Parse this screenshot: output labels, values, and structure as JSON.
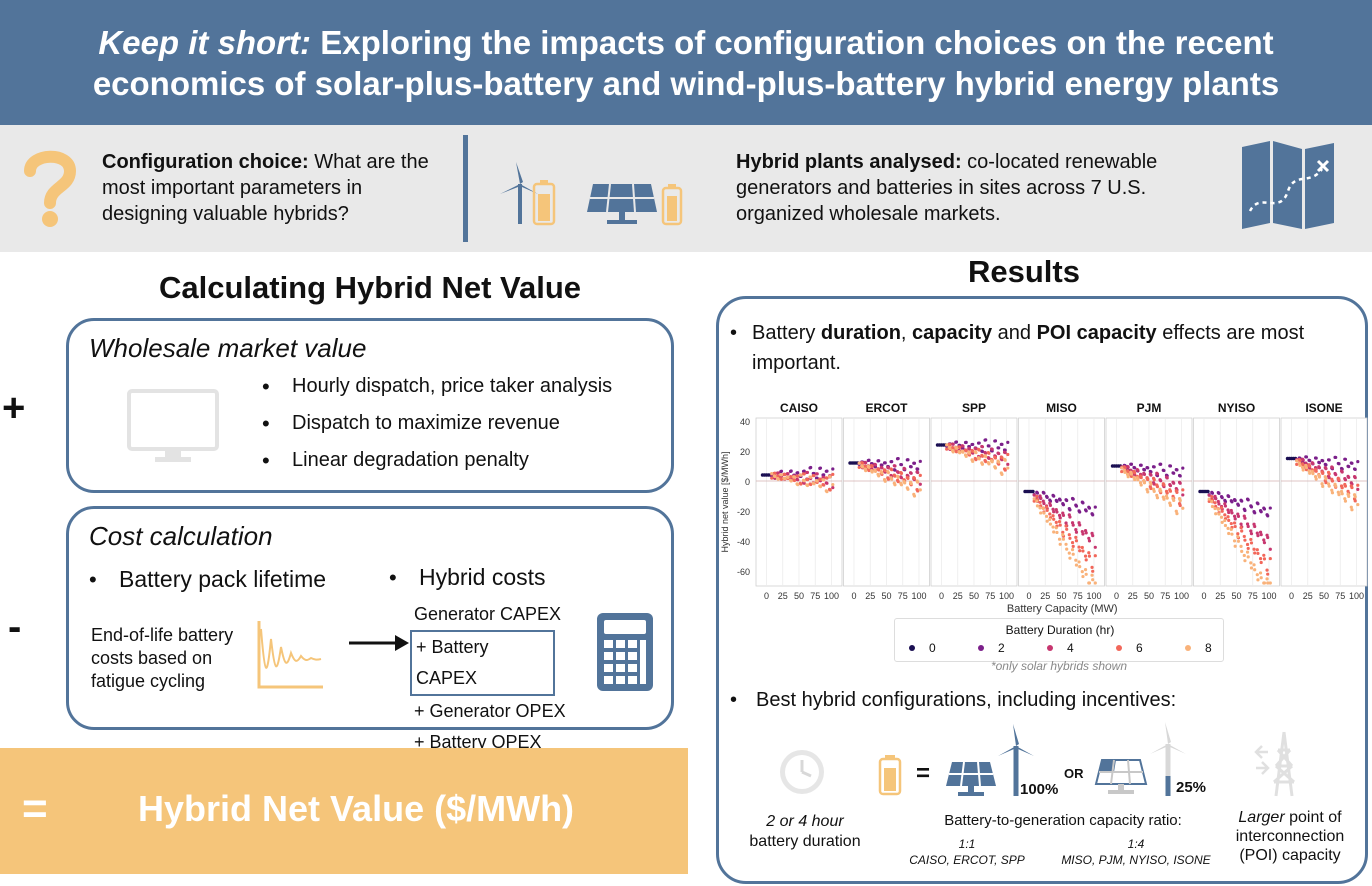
{
  "header": {
    "title_italic": "Keep it short:",
    "title_rest": " Exploring the impacts of configuration choices on the recent",
    "title_line2": "economics of solar-plus-battery and wind-plus-battery hybrid energy plants"
  },
  "intro": {
    "q_bold": "Configuration choice:",
    "q_rest": " What are the most important parameters in designing valuable hybrids?",
    "h_bold": "Hybrid plants analysed:",
    "h_rest": " co-located renewable generators and batteries in sites across 7 U.S. organized wholesale markets."
  },
  "left": {
    "title": "Calculating Hybrid Net Value",
    "plus": "+",
    "minus": "-",
    "equals": "=",
    "wholesale": {
      "title": "Wholesale market value",
      "bullets": [
        "Hourly dispatch, price taker analysis",
        "Dispatch to maximize revenue",
        "Linear degradation penalty"
      ]
    },
    "cost": {
      "title": "Cost calculation",
      "bullet_pack": "Battery pack lifetime",
      "bullet_hybrid": "Hybrid costs",
      "eol_text": "End-of-life battery costs based on fatigue cycling",
      "costs": [
        "Generator CAPEX",
        "+ Battery CAPEX",
        "+ Generator OPEX",
        "+ Battery OPEX"
      ]
    },
    "result": "Hybrid Net Value ($/MWh)"
  },
  "right": {
    "title": "Results",
    "bullet1_parts": [
      "Battery ",
      "duration",
      ", ",
      "capacity",
      " and ",
      "POI capacity",
      " effects are most important."
    ],
    "bullet2": "Best hybrid configurations, including incentives:",
    "duration_label_italic": "2 or 4 hour",
    "duration_label": "battery duration",
    "equals": "=",
    "or": "OR",
    "pct_100": "100%",
    "pct_25": "25%",
    "ratio_title": "Battery-to-generation capacity ratio:",
    "ratio_1": "1:1",
    "ratio_1_markets": "CAISO, ERCOT, SPP",
    "ratio_4": "1:4",
    "ratio_4_markets": "MISO, PJM, NYISO, ISONE",
    "poi_italic": "Larger",
    "poi_rest": " point of interconnection (POI) capacity"
  },
  "chart_data": {
    "type": "scatter",
    "panels": [
      "CAISO",
      "ERCOT",
      "SPP",
      "MISO",
      "PJM",
      "NYISO",
      "ISONE"
    ],
    "xlabel": "Battery Capacity (MW)",
    "ylabel": "Hybrid net value [$/MWh]",
    "xticks": [
      "0",
      "25",
      "50",
      "75",
      "100"
    ],
    "yticks": [
      40,
      20,
      0,
      -20,
      -40,
      -60
    ],
    "ylim": [
      -70,
      42
    ],
    "xlim": [
      -10,
      110
    ],
    "legend_title": "Battery Duration (hr)",
    "legend_note": "*only solar hybrids shown",
    "durations": [
      {
        "name": "0",
        "color": "#1a0f52"
      },
      {
        "name": "2",
        "color": "#7b1f8a"
      },
      {
        "name": "4",
        "color": "#c7366f"
      },
      {
        "name": "6",
        "color": "#f2675a"
      },
      {
        "name": "8",
        "color": "#f9b27a"
      }
    ],
    "baseline_value": {
      "CAISO": 4,
      "ERCOT": 12,
      "SPP": 24,
      "MISO": -7,
      "PJM": 10,
      "NYISO": -7,
      "ISONE": 15
    },
    "slope_per_hour": {
      "CAISO": -0.5,
      "ERCOT": -1.4,
      "SPP": -1.2,
      "MISO": -5.0,
      "PJM": -2.2,
      "NYISO": -5.2,
      "ISONE": -2.4
    },
    "points_x": [
      10,
      15,
      20,
      25,
      30,
      35,
      40,
      45,
      50,
      55,
      60,
      65,
      70,
      75,
      80,
      85,
      90,
      95,
      100
    ]
  },
  "colors": {
    "header": "#52749a",
    "accent": "#f5c57a",
    "orange": "#f7b041"
  }
}
